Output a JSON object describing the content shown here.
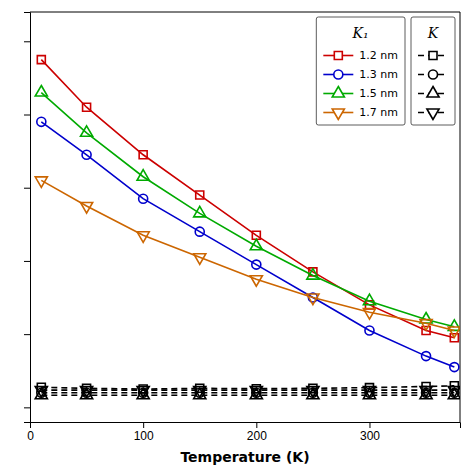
{
  "chart_data": {
    "type": "line",
    "x_label": "Temperature (K)",
    "x": [
      10,
      50,
      100,
      150,
      200,
      250,
      300,
      350,
      375
    ],
    "xlim": [
      0,
      380
    ],
    "ylim": [
      -0.04,
      1.08
    ],
    "xticks": [
      0,
      100,
      200,
      300
    ],
    "yticks": [
      0,
      0.2,
      0.4,
      0.6,
      0.8,
      1.0
    ],
    "tick_labels": "x",
    "grid": false,
    "legend": "upper right",
    "series": [
      {
        "name": "1.2 nm",
        "group": "K₁",
        "color": "#cc0000",
        "marker": "square",
        "line_style": "solid",
        "values": [
          0.95,
          0.82,
          0.69,
          0.58,
          0.47,
          0.37,
          0.28,
          0.21,
          0.19
        ]
      },
      {
        "name": "1.3 nm",
        "group": "K₁",
        "color": "#0000cc",
        "marker": "circle",
        "line_style": "solid",
        "values": [
          0.78,
          0.69,
          0.57,
          0.48,
          0.39,
          0.3,
          0.21,
          0.14,
          0.11
        ]
      },
      {
        "name": "1.5 nm",
        "group": "K₁",
        "color": "#00aa00",
        "marker": "triangle-up",
        "line_style": "solid",
        "values": [
          0.86,
          0.75,
          0.63,
          0.53,
          0.44,
          0.36,
          0.29,
          0.24,
          0.22
        ]
      },
      {
        "name": "1.7 nm",
        "group": "K₁",
        "color": "#cc6600",
        "marker": "triangle-down",
        "line_style": "solid",
        "values": [
          0.62,
          0.55,
          0.47,
          0.41,
          0.35,
          0.3,
          0.26,
          0.23,
          0.21
        ]
      },
      {
        "group": "K",
        "color": "#000000",
        "marker": "square",
        "line_style": "dashed",
        "values": [
          0.055,
          0.052,
          0.05,
          0.052,
          0.051,
          0.052,
          0.054,
          0.057,
          0.059
        ]
      },
      {
        "group": "K",
        "color": "#000000",
        "marker": "circle",
        "line_style": "dashed",
        "values": [
          0.04,
          0.04,
          0.04,
          0.04,
          0.04,
          0.04,
          0.04,
          0.04,
          0.04
        ]
      },
      {
        "group": "K",
        "color": "#000000",
        "marker": "triangle-up",
        "line_style": "dashed",
        "values": [
          0.033,
          0.033,
          0.033,
          0.033,
          0.033,
          0.033,
          0.033,
          0.033,
          0.033
        ]
      },
      {
        "group": "K",
        "color": "#000000",
        "marker": "triangle-down",
        "line_style": "dashed",
        "values": [
          0.047,
          0.047,
          0.047,
          0.047,
          0.047,
          0.047,
          0.047,
          0.047,
          0.047
        ]
      }
    ]
  }
}
